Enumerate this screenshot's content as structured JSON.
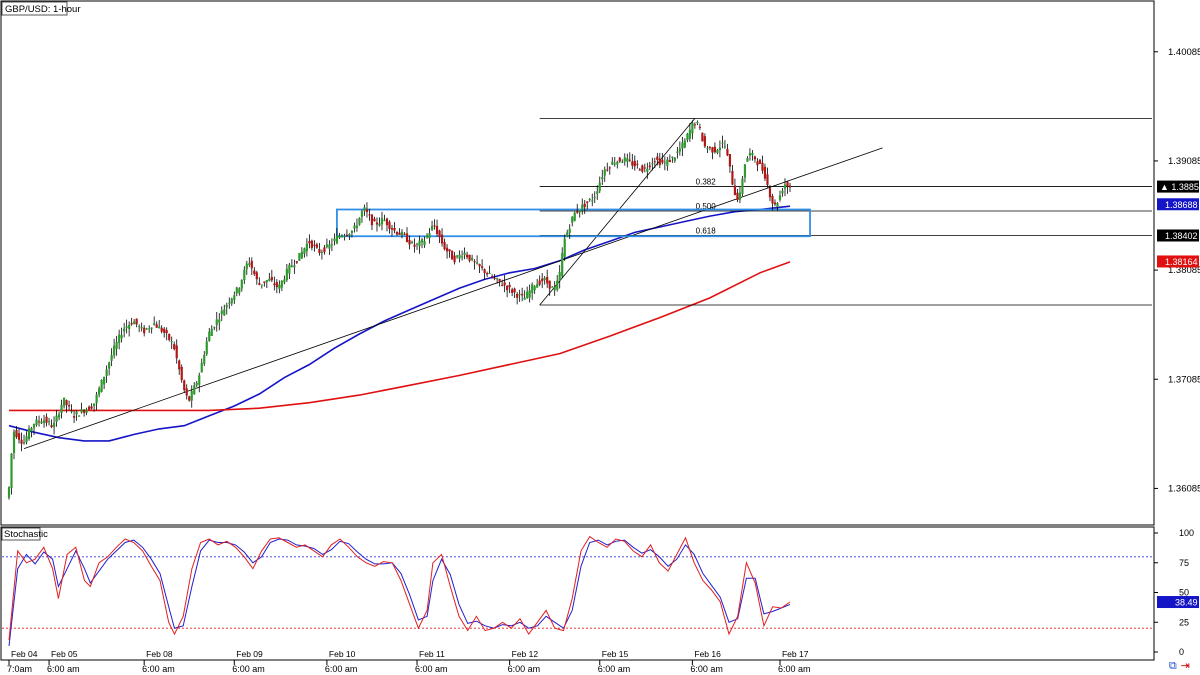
{
  "chart_data": {
    "type": "candlestick",
    "title": "GBP/USD: 1-hour",
    "price_axis": {
      "range": [
        1.3575,
        1.4055
      ],
      "ticks": [
        1.36085,
        1.37085,
        1.38085,
        1.39085,
        1.40085
      ],
      "tick_labels": [
        "1.36085",
        "1.37085",
        "1.38085",
        "1.39085",
        "1.40085"
      ]
    },
    "time_axis": {
      "bar_range": [
        0,
        312
      ],
      "labels": [
        {
          "bar": 0,
          "text": "Feb 04"
        },
        {
          "bar": 16,
          "text": "Feb 05"
        },
        {
          "bar": 54,
          "text": "Feb 08"
        },
        {
          "bar": 90,
          "text": "Feb 09"
        },
        {
          "bar": 127,
          "text": "Feb 10"
        },
        {
          "bar": 163,
          "text": "Feb 11"
        },
        {
          "bar": 200,
          "text": "Feb 12"
        },
        {
          "bar": 236,
          "text": "Feb 15"
        },
        {
          "bar": 273,
          "text": "Feb 16"
        },
        {
          "bar": 308,
          "text": "Feb 17"
        }
      ],
      "sub_labels": [
        {
          "bar": 0,
          "text": "7:0"
        },
        {
          "bar": 5,
          "text": "am"
        },
        {
          "bar": 16,
          "text": "6:00 am"
        },
        {
          "bar": 54,
          "text": "6:00 am"
        },
        {
          "bar": 90,
          "text": "6:00 am"
        },
        {
          "bar": 127,
          "text": "6:00 am"
        },
        {
          "bar": 163,
          "text": "6:00 am"
        },
        {
          "bar": 200,
          "text": "6:00 am"
        },
        {
          "bar": 236,
          "text": "6:00 am"
        },
        {
          "bar": 273,
          "text": "6:00 am"
        },
        {
          "bar": 308,
          "text": "6:00 am"
        }
      ]
    },
    "price_path": [
      [
        0,
        1.36
      ],
      [
        2,
        1.3662
      ],
      [
        6,
        1.365
      ],
      [
        10,
        1.3668
      ],
      [
        14,
        1.3672
      ],
      [
        18,
        1.3665
      ],
      [
        22,
        1.369
      ],
      [
        26,
        1.3675
      ],
      [
        30,
        1.368
      ],
      [
        34,
        1.3685
      ],
      [
        38,
        1.371
      ],
      [
        42,
        1.3735
      ],
      [
        46,
        1.3755
      ],
      [
        50,
        1.3762
      ],
      [
        54,
        1.3752
      ],
      [
        58,
        1.376
      ],
      [
        62,
        1.3752
      ],
      [
        66,
        1.374
      ],
      [
        70,
        1.37
      ],
      [
        72,
        1.3688
      ],
      [
        76,
        1.371
      ],
      [
        80,
        1.375
      ],
      [
        84,
        1.3765
      ],
      [
        88,
        1.378
      ],
      [
        92,
        1.3792
      ],
      [
        96,
        1.3818
      ],
      [
        100,
        1.3795
      ],
      [
        104,
        1.38
      ],
      [
        108,
        1.3792
      ],
      [
        112,
        1.381
      ],
      [
        116,
        1.382
      ],
      [
        120,
        1.3835
      ],
      [
        124,
        1.3825
      ],
      [
        128,
        1.383
      ],
      [
        132,
        1.384
      ],
      [
        138,
        1.3845
      ],
      [
        142,
        1.3865
      ],
      [
        146,
        1.385
      ],
      [
        150,
        1.3855
      ],
      [
        154,
        1.3845
      ],
      [
        158,
        1.384
      ],
      [
        162,
        1.383
      ],
      [
        166,
        1.3835
      ],
      [
        170,
        1.385
      ],
      [
        174,
        1.383
      ],
      [
        178,
        1.3818
      ],
      [
        182,
        1.3825
      ],
      [
        186,
        1.3815
      ],
      [
        190,
        1.3808
      ],
      [
        194,
        1.38
      ],
      [
        198,
        1.3795
      ],
      [
        202,
        1.3788
      ],
      [
        206,
        1.3782
      ],
      [
        210,
        1.3795
      ],
      [
        214,
        1.38
      ],
      [
        218,
        1.379
      ],
      [
        220,
        1.38
      ],
      [
        222,
        1.3835
      ],
      [
        226,
        1.386
      ],
      [
        230,
        1.3868
      ],
      [
        234,
        1.3875
      ],
      [
        238,
        1.39
      ],
      [
        242,
        1.3908
      ],
      [
        246,
        1.391
      ],
      [
        250,
        1.3905
      ],
      [
        254,
        1.39
      ],
      [
        258,
        1.391
      ],
      [
        262,
        1.3906
      ],
      [
        266,
        1.3912
      ],
      [
        270,
        1.3925
      ],
      [
        274,
        1.3945
      ],
      [
        276,
        1.394
      ],
      [
        278,
        1.3922
      ],
      [
        282,
        1.3918
      ],
      [
        286,
        1.3925
      ],
      [
        288,
        1.3905
      ],
      [
        290,
        1.388
      ],
      [
        292,
        1.3872
      ],
      [
        294,
        1.3905
      ],
      [
        296,
        1.3915
      ],
      [
        298,
        1.3912
      ],
      [
        300,
        1.3905
      ],
      [
        302,
        1.3898
      ],
      [
        304,
        1.388
      ],
      [
        306,
        1.3866
      ],
      [
        308,
        1.3875
      ],
      [
        310,
        1.3888
      ],
      [
        312,
        1.3885
      ]
    ],
    "moving_averages": [
      {
        "color": "#1515c8",
        "points": [
          [
            0,
            1.3666
          ],
          [
            10,
            1.366
          ],
          [
            20,
            1.3655
          ],
          [
            30,
            1.3652
          ],
          [
            40,
            1.3652
          ],
          [
            50,
            1.3658
          ],
          [
            60,
            1.3663
          ],
          [
            70,
            1.3666
          ],
          [
            80,
            1.3675
          ],
          [
            90,
            1.3684
          ],
          [
            100,
            1.3695
          ],
          [
            110,
            1.371
          ],
          [
            120,
            1.3722
          ],
          [
            130,
            1.3737
          ],
          [
            140,
            1.375
          ],
          [
            150,
            1.3762
          ],
          [
            160,
            1.3772
          ],
          [
            170,
            1.3782
          ],
          [
            180,
            1.3792
          ],
          [
            190,
            1.38
          ],
          [
            200,
            1.3806
          ],
          [
            210,
            1.381
          ],
          [
            220,
            1.3817
          ],
          [
            230,
            1.3827
          ],
          [
            240,
            1.3835
          ],
          [
            250,
            1.3843
          ],
          [
            260,
            1.3848
          ],
          [
            270,
            1.3853
          ],
          [
            280,
            1.3858
          ],
          [
            290,
            1.3862
          ],
          [
            300,
            1.3864
          ],
          [
            312,
            1.3867
          ]
        ]
      },
      {
        "color": "#e01010",
        "points": [
          [
            0,
            1.368
          ],
          [
            20,
            1.368
          ],
          [
            40,
            1.368
          ],
          [
            60,
            1.368
          ],
          [
            80,
            1.368
          ],
          [
            100,
            1.3682
          ],
          [
            120,
            1.3687
          ],
          [
            140,
            1.3694
          ],
          [
            160,
            1.3703
          ],
          [
            180,
            1.3712
          ],
          [
            200,
            1.3722
          ],
          [
            220,
            1.3732
          ],
          [
            240,
            1.3748
          ],
          [
            260,
            1.3765
          ],
          [
            280,
            1.3783
          ],
          [
            300,
            1.3806
          ],
          [
            312,
            1.3816
          ]
        ]
      }
    ],
    "annotations": {
      "fib_levels": [
        {
          "label": "0.382",
          "price": 1.3885
        },
        {
          "label": "0.500",
          "price": 1.38626
        },
        {
          "label": "0.618",
          "price": 1.38402
        }
      ],
      "fib_swing": {
        "from": [
          212,
          1.37765
        ],
        "to": [
          274,
          1.39475
        ]
      },
      "horizontal_lines": [
        1.39475,
        1.37765
      ],
      "trendline": {
        "from": [
          6,
          1.3645
        ],
        "to": [
          349,
          1.39205
        ]
      },
      "support_zone": {
        "bars": [
          131,
          320
        ],
        "prices": [
          1.38395,
          1.3864
        ],
        "color": "#2f8fe8"
      }
    },
    "price_labels": [
      {
        "text": "1.38850",
        "price": 1.3885,
        "bg": "#000000",
        "fg": "#ffffff",
        "arrow": "▲"
      },
      {
        "text": "1.38688",
        "price": 1.38688,
        "bg": "#1515c8",
        "fg": "#ffffff"
      },
      {
        "text": "1.38402",
        "price": 1.38402,
        "bg": "#000000",
        "fg": "#ffffff"
      },
      {
        "text": "1.38164",
        "price": 1.38164,
        "bg": "#e01010",
        "fg": "#ffffff"
      }
    ],
    "stochastic": {
      "name": "Stochastic",
      "range": [
        0,
        100
      ],
      "ticks": [
        0,
        25,
        50,
        75,
        100
      ],
      "tick_labels": [
        "0",
        "25",
        "50",
        "75",
        "100"
      ],
      "overbought": 80,
      "oversold": 20,
      "current_label": "38.49",
      "k": [
        [
          0,
          10
        ],
        [
          3,
          85
        ],
        [
          6,
          75
        ],
        [
          9,
          78
        ],
        [
          12,
          88
        ],
        [
          15,
          70
        ],
        [
          17,
          45
        ],
        [
          20,
          82
        ],
        [
          23,
          88
        ],
        [
          26,
          60
        ],
        [
          28,
          55
        ],
        [
          31,
          75
        ],
        [
          34,
          80
        ],
        [
          37,
          88
        ],
        [
          40,
          95
        ],
        [
          43,
          92
        ],
        [
          46,
          85
        ],
        [
          49,
          72
        ],
        [
          52,
          60
        ],
        [
          55,
          25
        ],
        [
          57,
          15
        ],
        [
          60,
          30
        ],
        [
          63,
          70
        ],
        [
          66,
          92
        ],
        [
          69,
          95
        ],
        [
          72,
          90
        ],
        [
          75,
          93
        ],
        [
          78,
          88
        ],
        [
          81,
          80
        ],
        [
          84,
          70
        ],
        [
          87,
          85
        ],
        [
          90,
          95
        ],
        [
          93,
          96
        ],
        [
          96,
          92
        ],
        [
          99,
          88
        ],
        [
          102,
          90
        ],
        [
          105,
          85
        ],
        [
          108,
          80
        ],
        [
          111,
          90
        ],
        [
          114,
          95
        ],
        [
          117,
          88
        ],
        [
          120,
          80
        ],
        [
          123,
          75
        ],
        [
          126,
          72
        ],
        [
          129,
          76
        ],
        [
          132,
          75
        ],
        [
          135,
          60
        ],
        [
          138,
          40
        ],
        [
          141,
          20
        ],
        [
          144,
          35
        ],
        [
          146,
          75
        ],
        [
          149,
          82
        ],
        [
          152,
          55
        ],
        [
          155,
          30
        ],
        [
          158,
          18
        ],
        [
          161,
          30
        ],
        [
          164,
          18
        ],
        [
          167,
          20
        ],
        [
          170,
          25
        ],
        [
          173,
          20
        ],
        [
          176,
          28
        ],
        [
          179,
          15
        ],
        [
          182,
          25
        ],
        [
          185,
          35
        ],
        [
          188,
          20
        ],
        [
          191,
          18
        ],
        [
          194,
          45
        ],
        [
          197,
          85
        ],
        [
          200,
          97
        ],
        [
          203,
          92
        ],
        [
          206,
          88
        ],
        [
          209,
          95
        ],
        [
          212,
          93
        ],
        [
          215,
          85
        ],
        [
          218,
          80
        ],
        [
          221,
          90
        ],
        [
          224,
          75
        ],
        [
          227,
          68
        ],
        [
          230,
          82
        ],
        [
          233,
          96
        ],
        [
          236,
          75
        ],
        [
          239,
          60
        ],
        [
          242,
          52
        ],
        [
          245,
          42
        ],
        [
          248,
          15
        ],
        [
          251,
          30
        ],
        [
          254,
          75
        ],
        [
          257,
          58
        ],
        [
          260,
          22
        ],
        [
          263,
          38
        ],
        [
          266,
          37
        ],
        [
          269,
          42
        ]
      ],
      "d": [
        [
          0,
          5
        ],
        [
          3,
          70
        ],
        [
          6,
          82
        ],
        [
          9,
          74
        ],
        [
          12,
          84
        ],
        [
          15,
          78
        ],
        [
          17,
          55
        ],
        [
          20,
          70
        ],
        [
          23,
          85
        ],
        [
          26,
          70
        ],
        [
          28,
          58
        ],
        [
          31,
          68
        ],
        [
          34,
          78
        ],
        [
          37,
          85
        ],
        [
          40,
          92
        ],
        [
          43,
          94
        ],
        [
          46,
          88
        ],
        [
          49,
          78
        ],
        [
          52,
          66
        ],
        [
          55,
          38
        ],
        [
          57,
          20
        ],
        [
          60,
          22
        ],
        [
          63,
          55
        ],
        [
          66,
          85
        ],
        [
          69,
          94
        ],
        [
          72,
          92
        ],
        [
          75,
          92
        ],
        [
          78,
          90
        ],
        [
          81,
          84
        ],
        [
          84,
          75
        ],
        [
          87,
          80
        ],
        [
          90,
          92
        ],
        [
          93,
          95
        ],
        [
          96,
          94
        ],
        [
          99,
          90
        ],
        [
          102,
          89
        ],
        [
          105,
          87
        ],
        [
          108,
          82
        ],
        [
          111,
          86
        ],
        [
          114,
          93
        ],
        [
          117,
          91
        ],
        [
          120,
          84
        ],
        [
          123,
          78
        ],
        [
          126,
          74
        ],
        [
          129,
          74
        ],
        [
          132,
          75
        ],
        [
          135,
          66
        ],
        [
          138,
          48
        ],
        [
          141,
          27
        ],
        [
          144,
          30
        ],
        [
          146,
          60
        ],
        [
          149,
          78
        ],
        [
          152,
          65
        ],
        [
          155,
          40
        ],
        [
          158,
          24
        ],
        [
          161,
          26
        ],
        [
          164,
          22
        ],
        [
          167,
          20
        ],
        [
          170,
          23
        ],
        [
          173,
          22
        ],
        [
          176,
          25
        ],
        [
          179,
          20
        ],
        [
          182,
          22
        ],
        [
          185,
          30
        ],
        [
          188,
          25
        ],
        [
          191,
          20
        ],
        [
          194,
          35
        ],
        [
          197,
          72
        ],
        [
          200,
          92
        ],
        [
          203,
          94
        ],
        [
          206,
          90
        ],
        [
          209,
          93
        ],
        [
          212,
          94
        ],
        [
          215,
          88
        ],
        [
          218,
          83
        ],
        [
          221,
          86
        ],
        [
          224,
          80
        ],
        [
          227,
          72
        ],
        [
          230,
          78
        ],
        [
          233,
          90
        ],
        [
          236,
          82
        ],
        [
          239,
          66
        ],
        [
          242,
          56
        ],
        [
          245,
          46
        ],
        [
          248,
          25
        ],
        [
          251,
          28
        ],
        [
          254,
          62
        ],
        [
          257,
          62
        ],
        [
          260,
          32
        ],
        [
          263,
          34
        ],
        [
          266,
          37
        ],
        [
          269,
          40
        ]
      ]
    },
    "colors": {
      "up_candle": "#2e9a2e",
      "down_candle": "#b01818",
      "k_line": "#e02020",
      "d_line": "#2020d0",
      "level_lines": "#000000"
    }
  }
}
